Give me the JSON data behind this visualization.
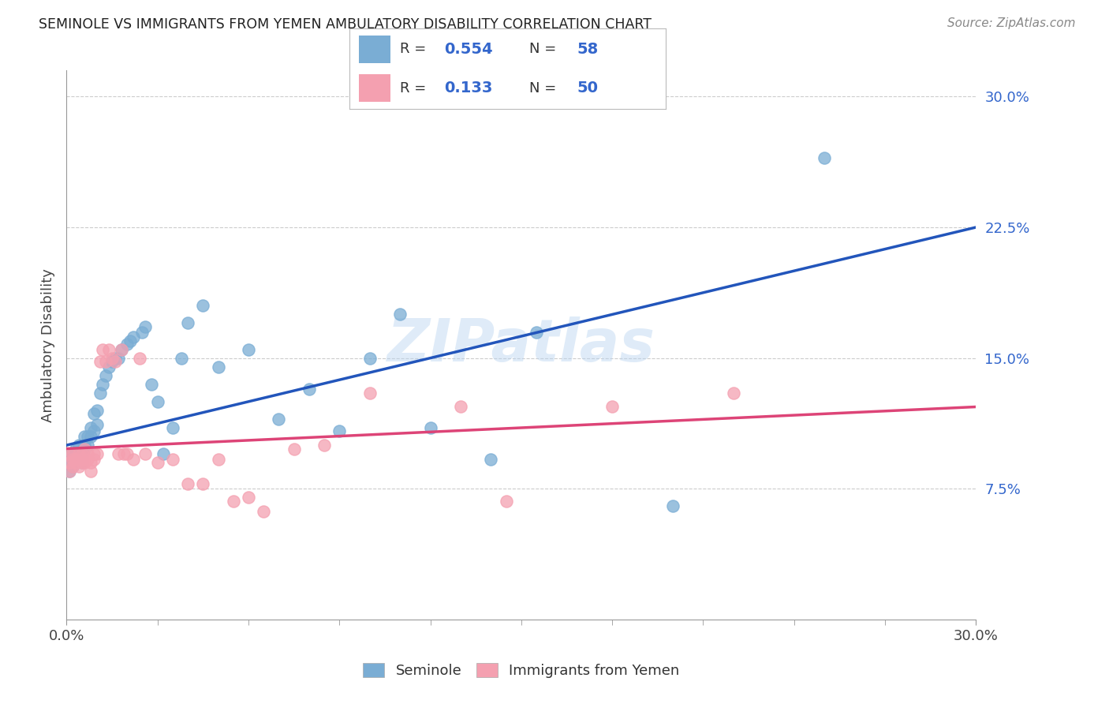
{
  "title": "SEMINOLE VS IMMIGRANTS FROM YEMEN AMBULATORY DISABILITY CORRELATION CHART",
  "source": "Source: ZipAtlas.com",
  "ylabel": "Ambulatory Disability",
  "yticks": [
    "7.5%",
    "15.0%",
    "22.5%",
    "30.0%"
  ],
  "ytick_vals": [
    0.075,
    0.15,
    0.225,
    0.3
  ],
  "xmin": 0.0,
  "xmax": 0.3,
  "ymin": 0.0,
  "ymax": 0.315,
  "seminole_color": "#7aadd4",
  "yemen_color": "#f4a0b0",
  "seminole_line_color": "#2255bb",
  "yemen_line_color": "#dd4477",
  "seminole_R": "0.554",
  "seminole_N": "58",
  "yemen_R": "0.133",
  "yemen_N": "50",
  "legend_R_N_color": "#3366cc",
  "legend_text_color": "#333333",
  "watermark": "ZIPatlas",
  "seminole_x": [
    0.001,
    0.001,
    0.001,
    0.002,
    0.002,
    0.002,
    0.003,
    0.003,
    0.003,
    0.004,
    0.004,
    0.004,
    0.005,
    0.005,
    0.005,
    0.006,
    0.006,
    0.006,
    0.007,
    0.007,
    0.008,
    0.008,
    0.009,
    0.009,
    0.01,
    0.01,
    0.011,
    0.012,
    0.013,
    0.014,
    0.015,
    0.016,
    0.017,
    0.018,
    0.02,
    0.021,
    0.022,
    0.025,
    0.026,
    0.028,
    0.03,
    0.032,
    0.035,
    0.038,
    0.04,
    0.045,
    0.05,
    0.06,
    0.07,
    0.08,
    0.09,
    0.1,
    0.11,
    0.12,
    0.14,
    0.155,
    0.2,
    0.25
  ],
  "seminole_y": [
    0.085,
    0.09,
    0.092,
    0.088,
    0.092,
    0.095,
    0.09,
    0.095,
    0.098,
    0.095,
    0.095,
    0.1,
    0.09,
    0.092,
    0.095,
    0.098,
    0.1,
    0.105,
    0.1,
    0.105,
    0.105,
    0.11,
    0.108,
    0.118,
    0.112,
    0.12,
    0.13,
    0.135,
    0.14,
    0.145,
    0.148,
    0.15,
    0.15,
    0.155,
    0.158,
    0.16,
    0.162,
    0.165,
    0.168,
    0.135,
    0.125,
    0.095,
    0.11,
    0.15,
    0.17,
    0.18,
    0.145,
    0.155,
    0.115,
    0.132,
    0.108,
    0.15,
    0.175,
    0.11,
    0.092,
    0.165,
    0.065,
    0.265
  ],
  "yemen_x": [
    0.001,
    0.001,
    0.001,
    0.002,
    0.002,
    0.002,
    0.003,
    0.003,
    0.004,
    0.004,
    0.005,
    0.005,
    0.005,
    0.006,
    0.006,
    0.007,
    0.007,
    0.008,
    0.008,
    0.009,
    0.009,
    0.01,
    0.011,
    0.012,
    0.013,
    0.014,
    0.015,
    0.016,
    0.017,
    0.018,
    0.019,
    0.02,
    0.022,
    0.024,
    0.026,
    0.03,
    0.035,
    0.04,
    0.045,
    0.05,
    0.055,
    0.06,
    0.065,
    0.075,
    0.085,
    0.1,
    0.13,
    0.145,
    0.18,
    0.22
  ],
  "yemen_y": [
    0.085,
    0.09,
    0.095,
    0.088,
    0.092,
    0.095,
    0.09,
    0.092,
    0.095,
    0.088,
    0.09,
    0.092,
    0.095,
    0.09,
    0.098,
    0.092,
    0.095,
    0.085,
    0.09,
    0.092,
    0.095,
    0.095,
    0.148,
    0.155,
    0.148,
    0.155,
    0.15,
    0.148,
    0.095,
    0.155,
    0.095,
    0.095,
    0.092,
    0.15,
    0.095,
    0.09,
    0.092,
    0.078,
    0.078,
    0.092,
    0.068,
    0.07,
    0.062,
    0.098,
    0.1,
    0.13,
    0.122,
    0.068,
    0.122,
    0.13
  ]
}
